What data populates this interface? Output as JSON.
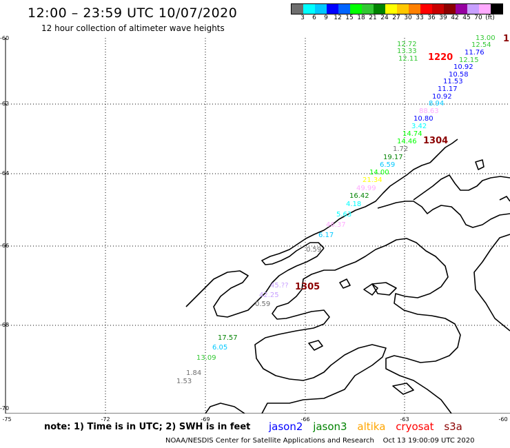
{
  "header": {
    "title": "12:00 – 23:59 UTC 10/07/2020",
    "subtitle": "12 hour collection of altimeter wave heights"
  },
  "colorbar": {
    "colors": [
      "#6e6e6e",
      "#00ffff",
      "#00c8ff",
      "#0000ff",
      "#0064ff",
      "#00ff00",
      "#32c832",
      "#008200",
      "#ffff00",
      "#ffc800",
      "#ff8000",
      "#ff0000",
      "#c80000",
      "#8b0000",
      "#9600a0",
      "#c8a0ff",
      "#ffaaff",
      "#000000"
    ],
    "labels": [
      "3",
      "6",
      "9",
      "12",
      "15",
      "18",
      "21",
      "24",
      "27",
      "30",
      "33",
      "36",
      "39",
      "42",
      "45",
      "70"
    ],
    "unit": "(ft)"
  },
  "axes": {
    "lat_labels": [
      "-60",
      "-62",
      "-64",
      "-66",
      "-68",
      "-70"
    ],
    "lon_labels": [
      "-75",
      "-72",
      "-69",
      "-66",
      "-63",
      "-60"
    ]
  },
  "passes": {
    "p1220": "1220",
    "p1304": "1304",
    "p1305": "1305",
    "p_edge": "1"
  },
  "observations": [
    {
      "v": "13.00",
      "c": "#32c832"
    },
    {
      "v": "12.72",
      "c": "#32c832"
    },
    {
      "v": "12.54",
      "c": "#32c832"
    },
    {
      "v": "13.33",
      "c": "#32c832"
    },
    {
      "v": "11.76",
      "c": "#0000ff"
    },
    {
      "v": "12.11",
      "c": "#32c832"
    },
    {
      "v": "12.15",
      "c": "#32c832"
    },
    {
      "v": "10.92",
      "c": "#0000ff"
    },
    {
      "v": "10.58",
      "c": "#0000ff"
    },
    {
      "v": "11.53",
      "c": "#0000ff"
    },
    {
      "v": "11.17",
      "c": "#0000ff"
    },
    {
      "v": "10.92",
      "c": "#0000ff"
    },
    {
      "v": "8.94",
      "c": "#00c8ff"
    },
    {
      "v": "88.63",
      "c": "#ffaaff"
    },
    {
      "v": "10.80",
      "c": "#0000ff"
    },
    {
      "v": "3.42",
      "c": "#00ffff"
    },
    {
      "v": "14.74",
      "c": "#00ff00"
    },
    {
      "v": "14.46",
      "c": "#00ff00"
    },
    {
      "v": "1.72",
      "c": "#6e6e6e"
    },
    {
      "v": "19.17",
      "c": "#008200"
    },
    {
      "v": "6.59",
      "c": "#00c8ff"
    },
    {
      "v": "14.00",
      "c": "#00ff00"
    },
    {
      "v": "21.34",
      "c": "#ffff00"
    },
    {
      "v": "49.99",
      "c": "#ffaaff"
    },
    {
      "v": "16.42",
      "c": "#008200"
    },
    {
      "v": "4.18",
      "c": "#00ffff"
    },
    {
      "v": "5.63",
      "c": "#00ffff"
    },
    {
      "v": "46.37",
      "c": "#ffaaff"
    },
    {
      "v": "6.17",
      "c": "#00c8ff"
    },
    {
      "v": "0.59",
      "c": "#6e6e6e"
    },
    {
      "v": "45.??",
      "c": "#c8a0ff"
    },
    {
      "v": "42.25",
      "c": "#c8a0ff"
    },
    {
      "v": "0.59",
      "c": "#6e6e6e"
    },
    {
      "v": "17.57",
      "c": "#008200"
    },
    {
      "v": "6.05",
      "c": "#00c8ff"
    },
    {
      "v": "13.09",
      "c": "#32c832"
    },
    {
      "v": "1.84",
      "c": "#6e6e6e"
    },
    {
      "v": "1.53",
      "c": "#6e6e6e"
    }
  ],
  "footer": {
    "note": "note:  1) Time is in UTC;  2) SWH is in feet",
    "satellites": [
      {
        "name": "jason2",
        "color": "#0000ff"
      },
      {
        "name": "jason3",
        "color": "#008200"
      },
      {
        "name": "altika",
        "color": "#ffa500"
      },
      {
        "name": "cryosat",
        "color": "#ff0000"
      },
      {
        "name": "s3a",
        "color": "#8b0000"
      }
    ],
    "credit_left": "NOAA/NESDIS Center for Satellite Applications and Research",
    "credit_right": "Oct 13 19:00:09 UTC 2020"
  }
}
